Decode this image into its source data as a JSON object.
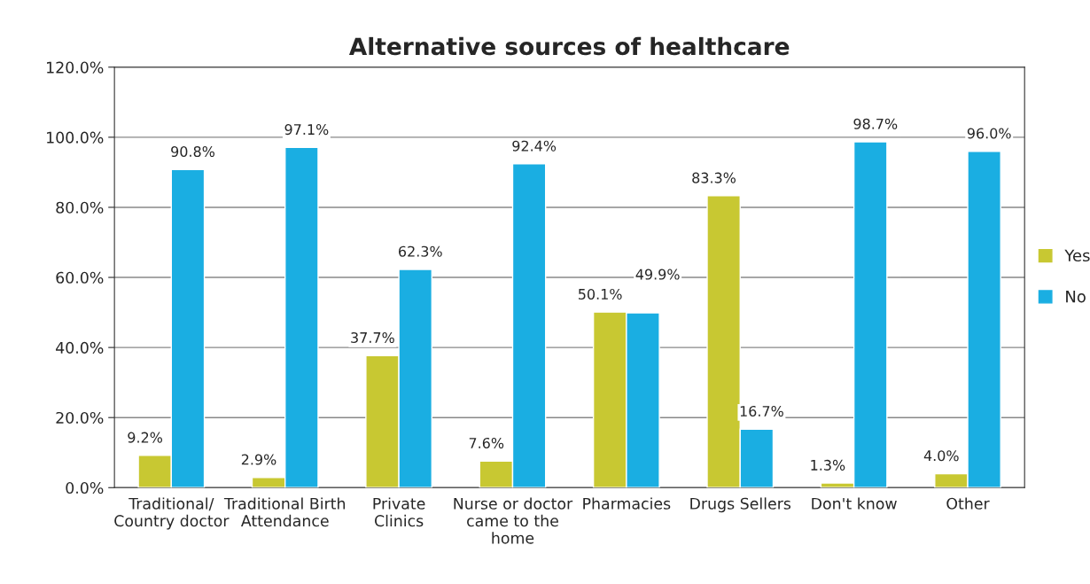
{
  "chart_data": {
    "type": "bar",
    "title": "Alternative sources of healthcare",
    "categories": [
      "Traditional/\nCountry doctor",
      "Traditional Birth\nAttendance",
      "Private\nClinics",
      "Nurse or doctor\ncame to the\nhome",
      "Pharmacies",
      "Drugs Sellers",
      "Don't know",
      "Other"
    ],
    "series": [
      {
        "name": "Yes",
        "color": "#c8c832",
        "values": [
          9.2,
          2.9,
          37.7,
          7.6,
          50.1,
          83.3,
          1.3,
          4.0
        ],
        "value_labels": [
          "9.2%",
          "2.9%",
          "37.7%",
          "7.6%",
          "50.1%",
          "83.3%",
          "1.3%",
          "4.0%"
        ]
      },
      {
        "name": "No",
        "color": "#1aaee2",
        "values": [
          90.8,
          97.1,
          62.3,
          92.4,
          49.9,
          16.7,
          98.7,
          96.0
        ],
        "value_labels": [
          "90.8%",
          "97.1%",
          "62.3%",
          "92.4%",
          "49.9%",
          "16.7%",
          "98.7%",
          "96.0%"
        ]
      }
    ],
    "ylim": [
      0,
      120
    ],
    "yticks": [
      {
        "value": 0,
        "label": "0.0%"
      },
      {
        "value": 20,
        "label": "20.0%"
      },
      {
        "value": 40,
        "label": "40.0%"
      },
      {
        "value": 60,
        "label": "60.0%"
      },
      {
        "value": 80,
        "label": "80.0%"
      },
      {
        "value": 100,
        "label": "100.0%"
      },
      {
        "value": 120,
        "label": "120.0%"
      }
    ],
    "grid": "y",
    "legend": "right"
  }
}
